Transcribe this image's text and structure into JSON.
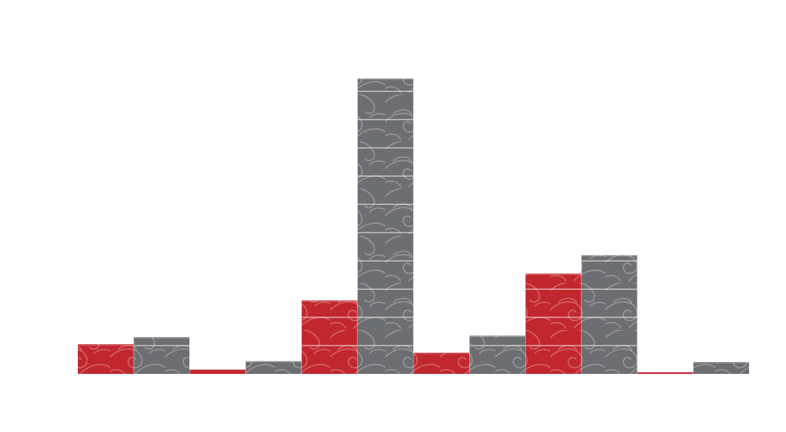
{
  "chart_data": {
    "type": "bar",
    "categories": [
      "",
      "",
      "",
      "",
      "",
      ""
    ],
    "series": [
      {
        "values": [
          1.05,
          0.15,
          2.6,
          0.75,
          3.55,
          0.05
        ]
      },
      {
        "values": [
          1.3,
          0.45,
          10.45,
          1.35,
          4.2,
          0.42
        ]
      }
    ],
    "ylim": [
      0,
      11
    ],
    "grid": false,
    "colors": {
      "series_1": "#c1272d",
      "series_2": "#6d6e71",
      "pattern": "#ffffff",
      "separator": "#ffffff",
      "background": "#ffffff"
    },
    "pattern": "wave-swirl"
  }
}
